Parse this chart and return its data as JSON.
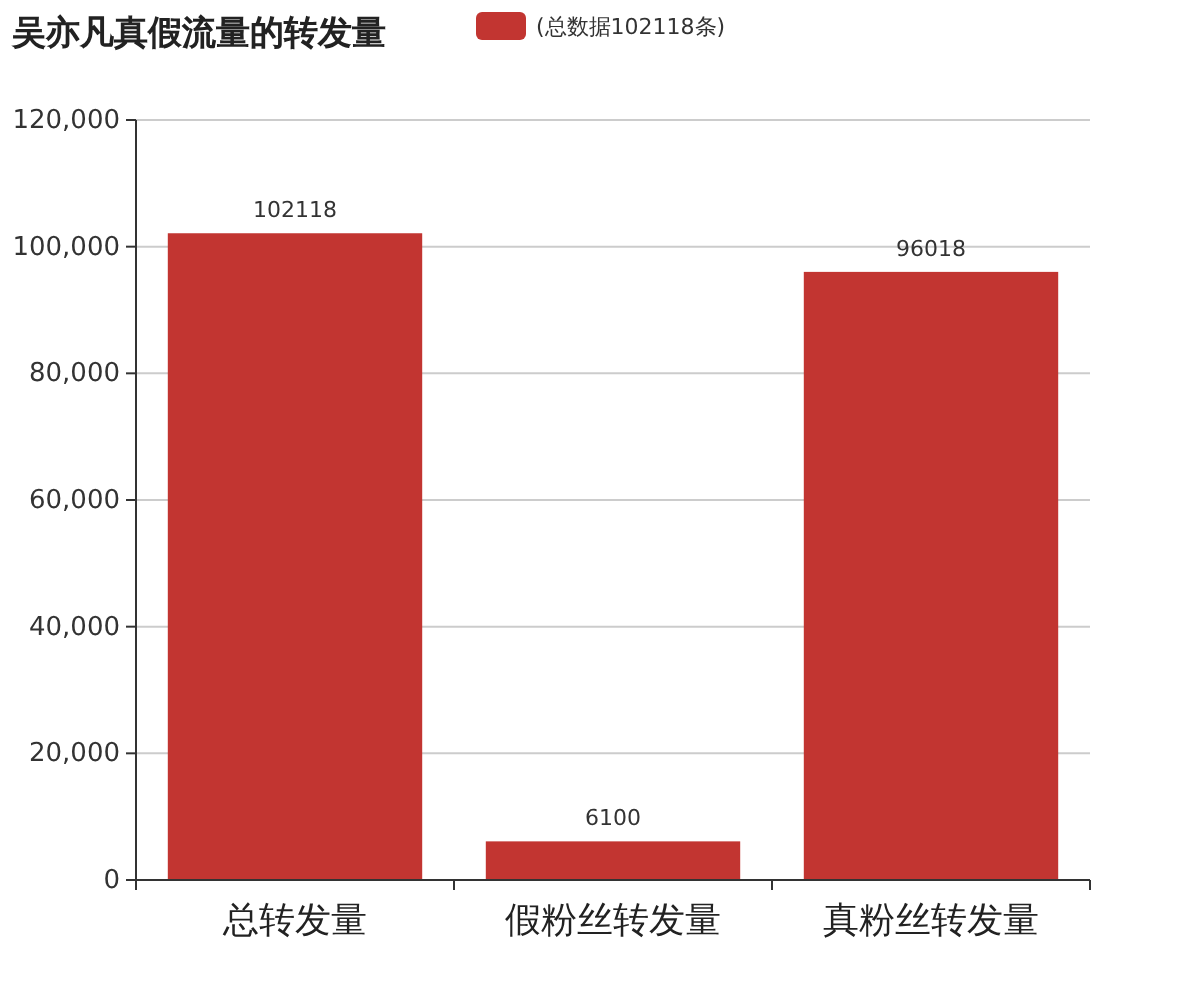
{
  "chart_data": {
    "type": "bar",
    "title": "吴亦凡真假流量的转发量",
    "categories": [
      "总转发量",
      "假粉丝转发量",
      "真粉丝转发量"
    ],
    "series": [
      {
        "name": "(总数据102118条)",
        "color": "#c23531",
        "values": [
          102118,
          6100,
          96018
        ]
      }
    ],
    "ylim": [
      0,
      120000
    ],
    "yticks": [
      {
        "value": 0,
        "label": "0"
      },
      {
        "value": 20000,
        "label": "20,000"
      },
      {
        "value": 40000,
        "label": "40,000"
      },
      {
        "value": 60000,
        "label": "60,000"
      },
      {
        "value": 80000,
        "label": "80,000"
      },
      {
        "value": 100000,
        "label": "100,000"
      },
      {
        "value": 120000,
        "label": "120,000"
      }
    ],
    "grid": "y",
    "legend": "top",
    "data_labels": true
  }
}
